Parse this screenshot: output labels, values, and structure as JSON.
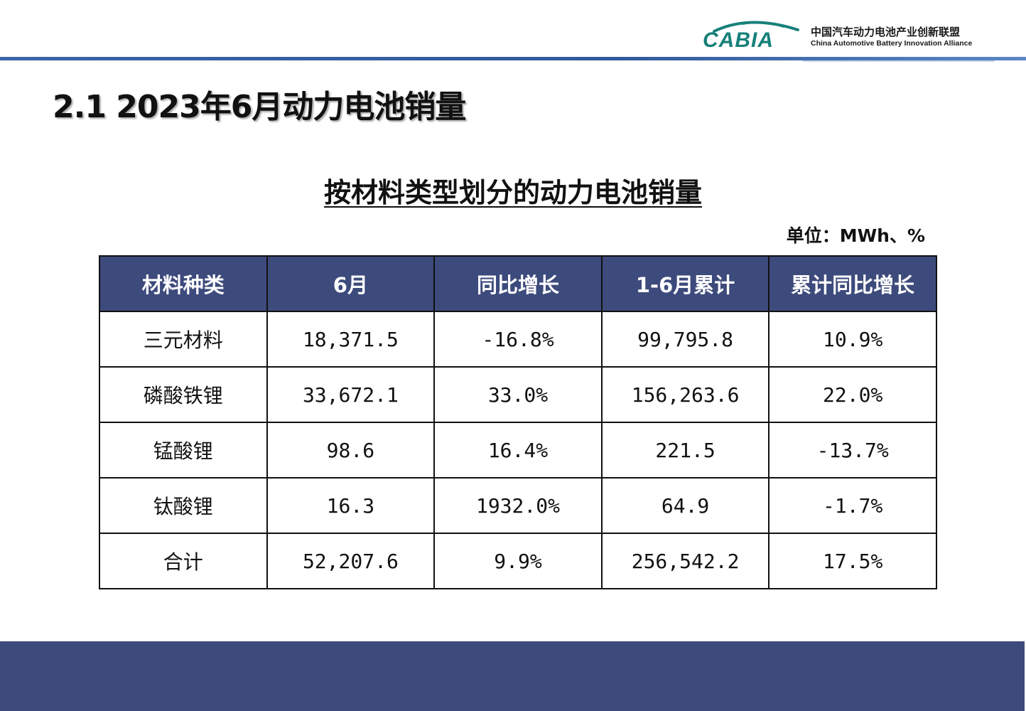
{
  "header": {
    "logo_mark_text": "CABIA",
    "org_name_cn": "中国汽车动力电池产业创新联盟",
    "org_name_en": "China Automotive Battery Innovation Alliance"
  },
  "section_title": "2.1 2023年6月动力电池销量",
  "table_title": "按材料类型划分的动力电池销量",
  "unit_label": "单位：MWh、%",
  "table": {
    "headers": [
      "材料种类",
      "6月",
      "同比增长",
      "1-6月累计",
      "累计同比增长"
    ],
    "rows": [
      [
        "三元材料",
        "18,371.5",
        "-16.8%",
        "99,795.8",
        "10.9%"
      ],
      [
        "磷酸铁锂",
        "33,672.1",
        "33.0%",
        "156,263.6",
        "22.0%"
      ],
      [
        "锰酸锂",
        "98.6",
        "16.4%",
        "221.5",
        "-13.7%"
      ],
      [
        "钛酸锂",
        "16.3",
        "1932.0%",
        "64.9",
        "-1.7%"
      ],
      [
        "合计",
        "52,207.6",
        "9.9%",
        "256,542.2",
        "17.5%"
      ]
    ]
  },
  "colors": {
    "header_fill": "#3d4a7c",
    "footer_band": "#3d4a7c",
    "logo_teal": "#17807a",
    "top_rule": "#2f5a9c"
  }
}
